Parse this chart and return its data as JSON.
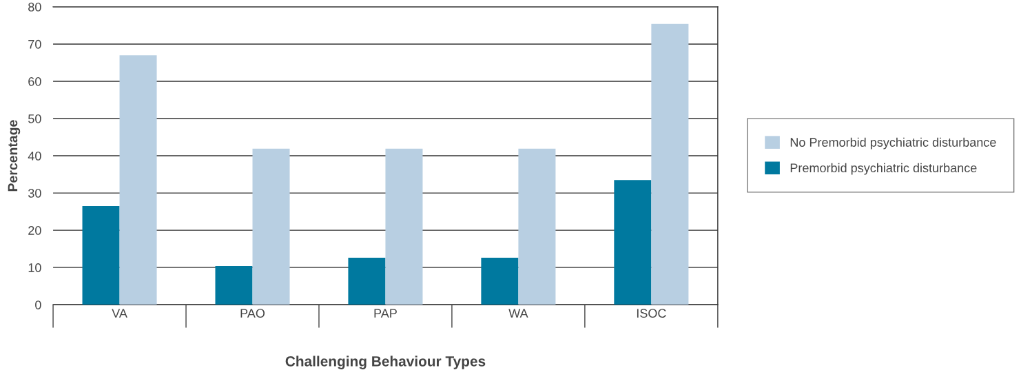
{
  "chart_data": {
    "type": "bar",
    "xlabel": "Challenging Behaviour Types",
    "ylabel": "Percentage",
    "categories": [
      "VA",
      "PAO",
      "PAP",
      "WA",
      "ISOC"
    ],
    "series": [
      {
        "name": "Premorbid psychiatric disturbance",
        "color": "#00799f",
        "values": [
          26.5,
          10.4,
          12.6,
          12.6,
          33.5
        ]
      },
      {
        "name": "No Premorbid psychiatric disturbance",
        "color": "#b8cfe2",
        "values": [
          67.0,
          41.9,
          41.9,
          41.9,
          75.4
        ]
      }
    ],
    "ylim": [
      0,
      80
    ],
    "yticks": [
      0,
      10,
      20,
      30,
      40,
      50,
      60,
      70,
      80
    ],
    "grid": "y",
    "legend": "right"
  }
}
